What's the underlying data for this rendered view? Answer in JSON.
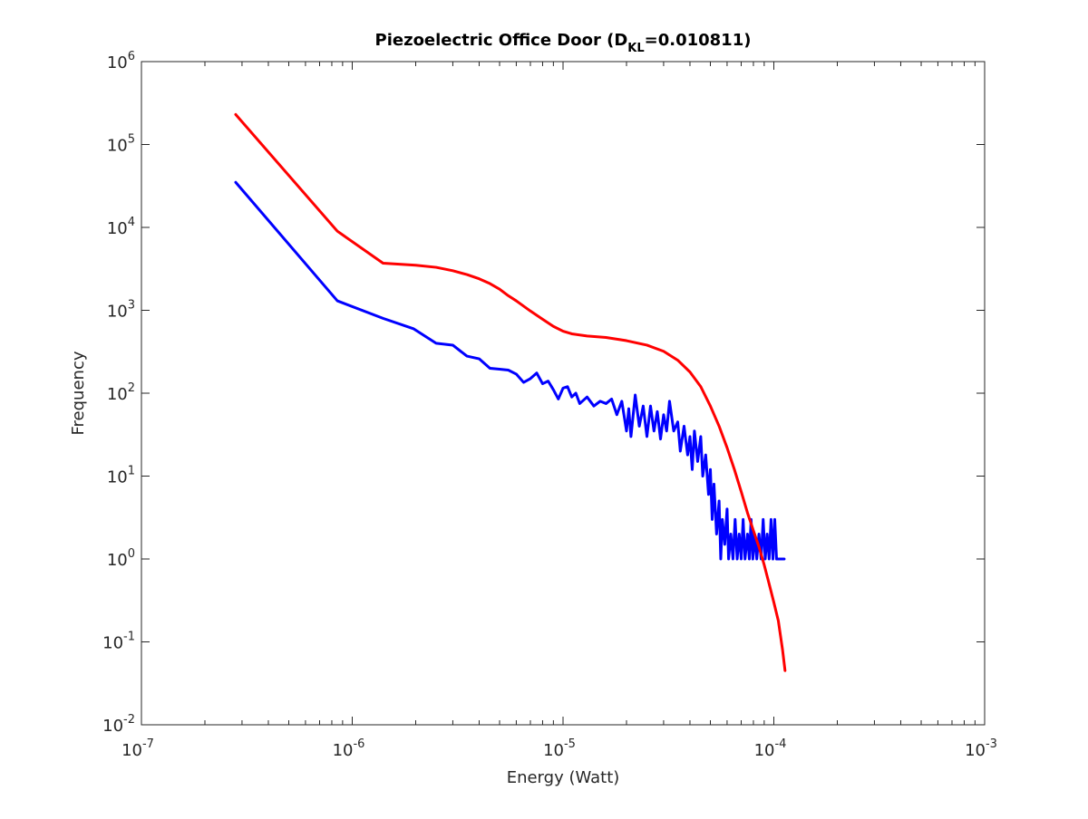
{
  "chart_data": {
    "type": "line",
    "title": "Piezoelectric Office Door (D",
    "title_subscript": "KL",
    "title_suffix": "=0.010811)",
    "xlabel": "Energy (Watt)",
    "ylabel": "Frequency",
    "x_scale": "log",
    "y_scale": "log",
    "xlim": [
      1e-07,
      0.001
    ],
    "ylim": [
      0.01,
      1000000
    ],
    "x_ticks": [
      {
        "value": 1e-07,
        "base": "10",
        "exp": "-7"
      },
      {
        "value": 1e-06,
        "base": "10",
        "exp": "-6"
      },
      {
        "value": 1e-05,
        "base": "10",
        "exp": "-5"
      },
      {
        "value": 0.0001,
        "base": "10",
        "exp": "-4"
      },
      {
        "value": 0.001,
        "base": "10",
        "exp": "-3"
      }
    ],
    "y_ticks": [
      {
        "value": 0.01,
        "base": "10",
        "exp": "-2"
      },
      {
        "value": 0.1,
        "base": "10",
        "exp": "-1"
      },
      {
        "value": 1,
        "base": "10",
        "exp": "0"
      },
      {
        "value": 10,
        "base": "10",
        "exp": "1"
      },
      {
        "value": 100,
        "base": "10",
        "exp": "2"
      },
      {
        "value": 1000,
        "base": "10",
        "exp": "3"
      },
      {
        "value": 10000,
        "base": "10",
        "exp": "4"
      },
      {
        "value": 100000,
        "base": "10",
        "exp": "5"
      },
      {
        "value": 1000000,
        "base": "10",
        "exp": "6"
      }
    ],
    "grid": false,
    "legend": false,
    "series": [
      {
        "color": "#0000ff",
        "points": [
          [
            2.8e-07,
            35000
          ],
          [
            8.5e-07,
            1300
          ],
          [
            1.4e-06,
            800
          ],
          [
            1.95e-06,
            600
          ],
          [
            2.5e-06,
            400
          ],
          [
            3e-06,
            380
          ],
          [
            3.5e-06,
            280
          ],
          [
            4e-06,
            260
          ],
          [
            4.5e-06,
            200
          ],
          [
            5e-06,
            195
          ],
          [
            5.5e-06,
            190
          ],
          [
            6e-06,
            170
          ],
          [
            6.5e-06,
            135
          ],
          [
            7e-06,
            150
          ],
          [
            7.5e-06,
            175
          ],
          [
            8e-06,
            130
          ],
          [
            8.5e-06,
            140
          ],
          [
            9e-06,
            110
          ],
          [
            9.5e-06,
            85
          ],
          [
            1e-05,
            115
          ],
          [
            1.05e-05,
            120
          ],
          [
            1.1e-05,
            90
          ],
          [
            1.15e-05,
            100
          ],
          [
            1.2e-05,
            75
          ],
          [
            1.3e-05,
            90
          ],
          [
            1.4e-05,
            70
          ],
          [
            1.5e-05,
            80
          ],
          [
            1.6e-05,
            75
          ],
          [
            1.7e-05,
            85
          ],
          [
            1.8e-05,
            55
          ],
          [
            1.9e-05,
            80
          ],
          [
            2e-05,
            35
          ],
          [
            2.05e-05,
            65
          ],
          [
            2.1e-05,
            30
          ],
          [
            2.2e-05,
            95
          ],
          [
            2.3e-05,
            40
          ],
          [
            2.4e-05,
            70
          ],
          [
            2.5e-05,
            30
          ],
          [
            2.6e-05,
            70
          ],
          [
            2.7e-05,
            35
          ],
          [
            2.8e-05,
            60
          ],
          [
            2.9e-05,
            28
          ],
          [
            3e-05,
            55
          ],
          [
            3.1e-05,
            35
          ],
          [
            3.2e-05,
            80
          ],
          [
            3.35e-05,
            35
          ],
          [
            3.5e-05,
            45
          ],
          [
            3.6e-05,
            20
          ],
          [
            3.75e-05,
            40
          ],
          [
            3.9e-05,
            18
          ],
          [
            4e-05,
            30
          ],
          [
            4.1e-05,
            12
          ],
          [
            4.2e-05,
            35
          ],
          [
            4.35e-05,
            15
          ],
          [
            4.5e-05,
            30
          ],
          [
            4.6e-05,
            10
          ],
          [
            4.75e-05,
            18
          ],
          [
            4.9e-05,
            6
          ],
          [
            5e-05,
            12
          ],
          [
            5.1e-05,
            3
          ],
          [
            5.2e-05,
            8
          ],
          [
            5.35e-05,
            2
          ],
          [
            5.5e-05,
            5
          ],
          [
            5.6e-05,
            1
          ],
          [
            5.7e-05,
            3
          ],
          [
            5.85e-05,
            1.5
          ],
          [
            6e-05,
            4
          ],
          [
            6.1e-05,
            1
          ],
          [
            6.25e-05,
            2
          ],
          [
            6.4e-05,
            1
          ],
          [
            6.55e-05,
            3
          ],
          [
            6.7e-05,
            1
          ],
          [
            6.85e-05,
            2
          ],
          [
            7e-05,
            1
          ],
          [
            7.15e-05,
            3
          ],
          [
            7.3e-05,
            1
          ],
          [
            7.5e-05,
            2
          ],
          [
            7.65e-05,
            1
          ],
          [
            7.8e-05,
            3
          ],
          [
            7.95e-05,
            1
          ],
          [
            8.1e-05,
            2
          ],
          [
            8.3e-05,
            1
          ],
          [
            8.5e-05,
            2
          ],
          [
            8.7e-05,
            1
          ],
          [
            8.9e-05,
            3
          ],
          [
            9.1e-05,
            1
          ],
          [
            9.3e-05,
            2
          ],
          [
            9.5e-05,
            1
          ],
          [
            9.7e-05,
            3
          ],
          [
            9.9e-05,
            1
          ],
          [
            0.000101,
            3
          ],
          [
            0.000103,
            1
          ],
          [
            0.000112,
            1
          ]
        ]
      },
      {
        "color": "#ff0000",
        "points": [
          [
            2.8e-07,
            230000
          ],
          [
            8.5e-07,
            9000
          ],
          [
            1.4e-06,
            3700
          ],
          [
            2e-06,
            3500
          ],
          [
            2.5e-06,
            3300
          ],
          [
            3e-06,
            3000
          ],
          [
            3.5e-06,
            2700
          ],
          [
            4e-06,
            2400
          ],
          [
            4.5e-06,
            2100
          ],
          [
            5e-06,
            1800
          ],
          [
            5.5e-06,
            1500
          ],
          [
            6e-06,
            1300
          ],
          [
            7e-06,
            980
          ],
          [
            8e-06,
            780
          ],
          [
            9e-06,
            640
          ],
          [
            1e-05,
            560
          ],
          [
            1.1e-05,
            520
          ],
          [
            1.3e-05,
            490
          ],
          [
            1.6e-05,
            470
          ],
          [
            2e-05,
            430
          ],
          [
            2.5e-05,
            380
          ],
          [
            3e-05,
            320
          ],
          [
            3.5e-05,
            250
          ],
          [
            4e-05,
            180
          ],
          [
            4.5e-05,
            120
          ],
          [
            5e-05,
            70
          ],
          [
            5.5e-05,
            40
          ],
          [
            6e-05,
            22
          ],
          [
            6.5e-05,
            12
          ],
          [
            7e-05,
            6.5
          ],
          [
            7.5e-05,
            3.6
          ],
          [
            8e-05,
            2.2
          ],
          [
            8.5e-05,
            1.4
          ],
          [
            9e-05,
            0.85
          ],
          [
            9.5e-05,
            0.5
          ],
          [
            0.0001,
            0.3
          ],
          [
            0.000105,
            0.18
          ],
          [
            0.00011,
            0.08
          ],
          [
            0.000113,
            0.045
          ]
        ]
      }
    ]
  }
}
